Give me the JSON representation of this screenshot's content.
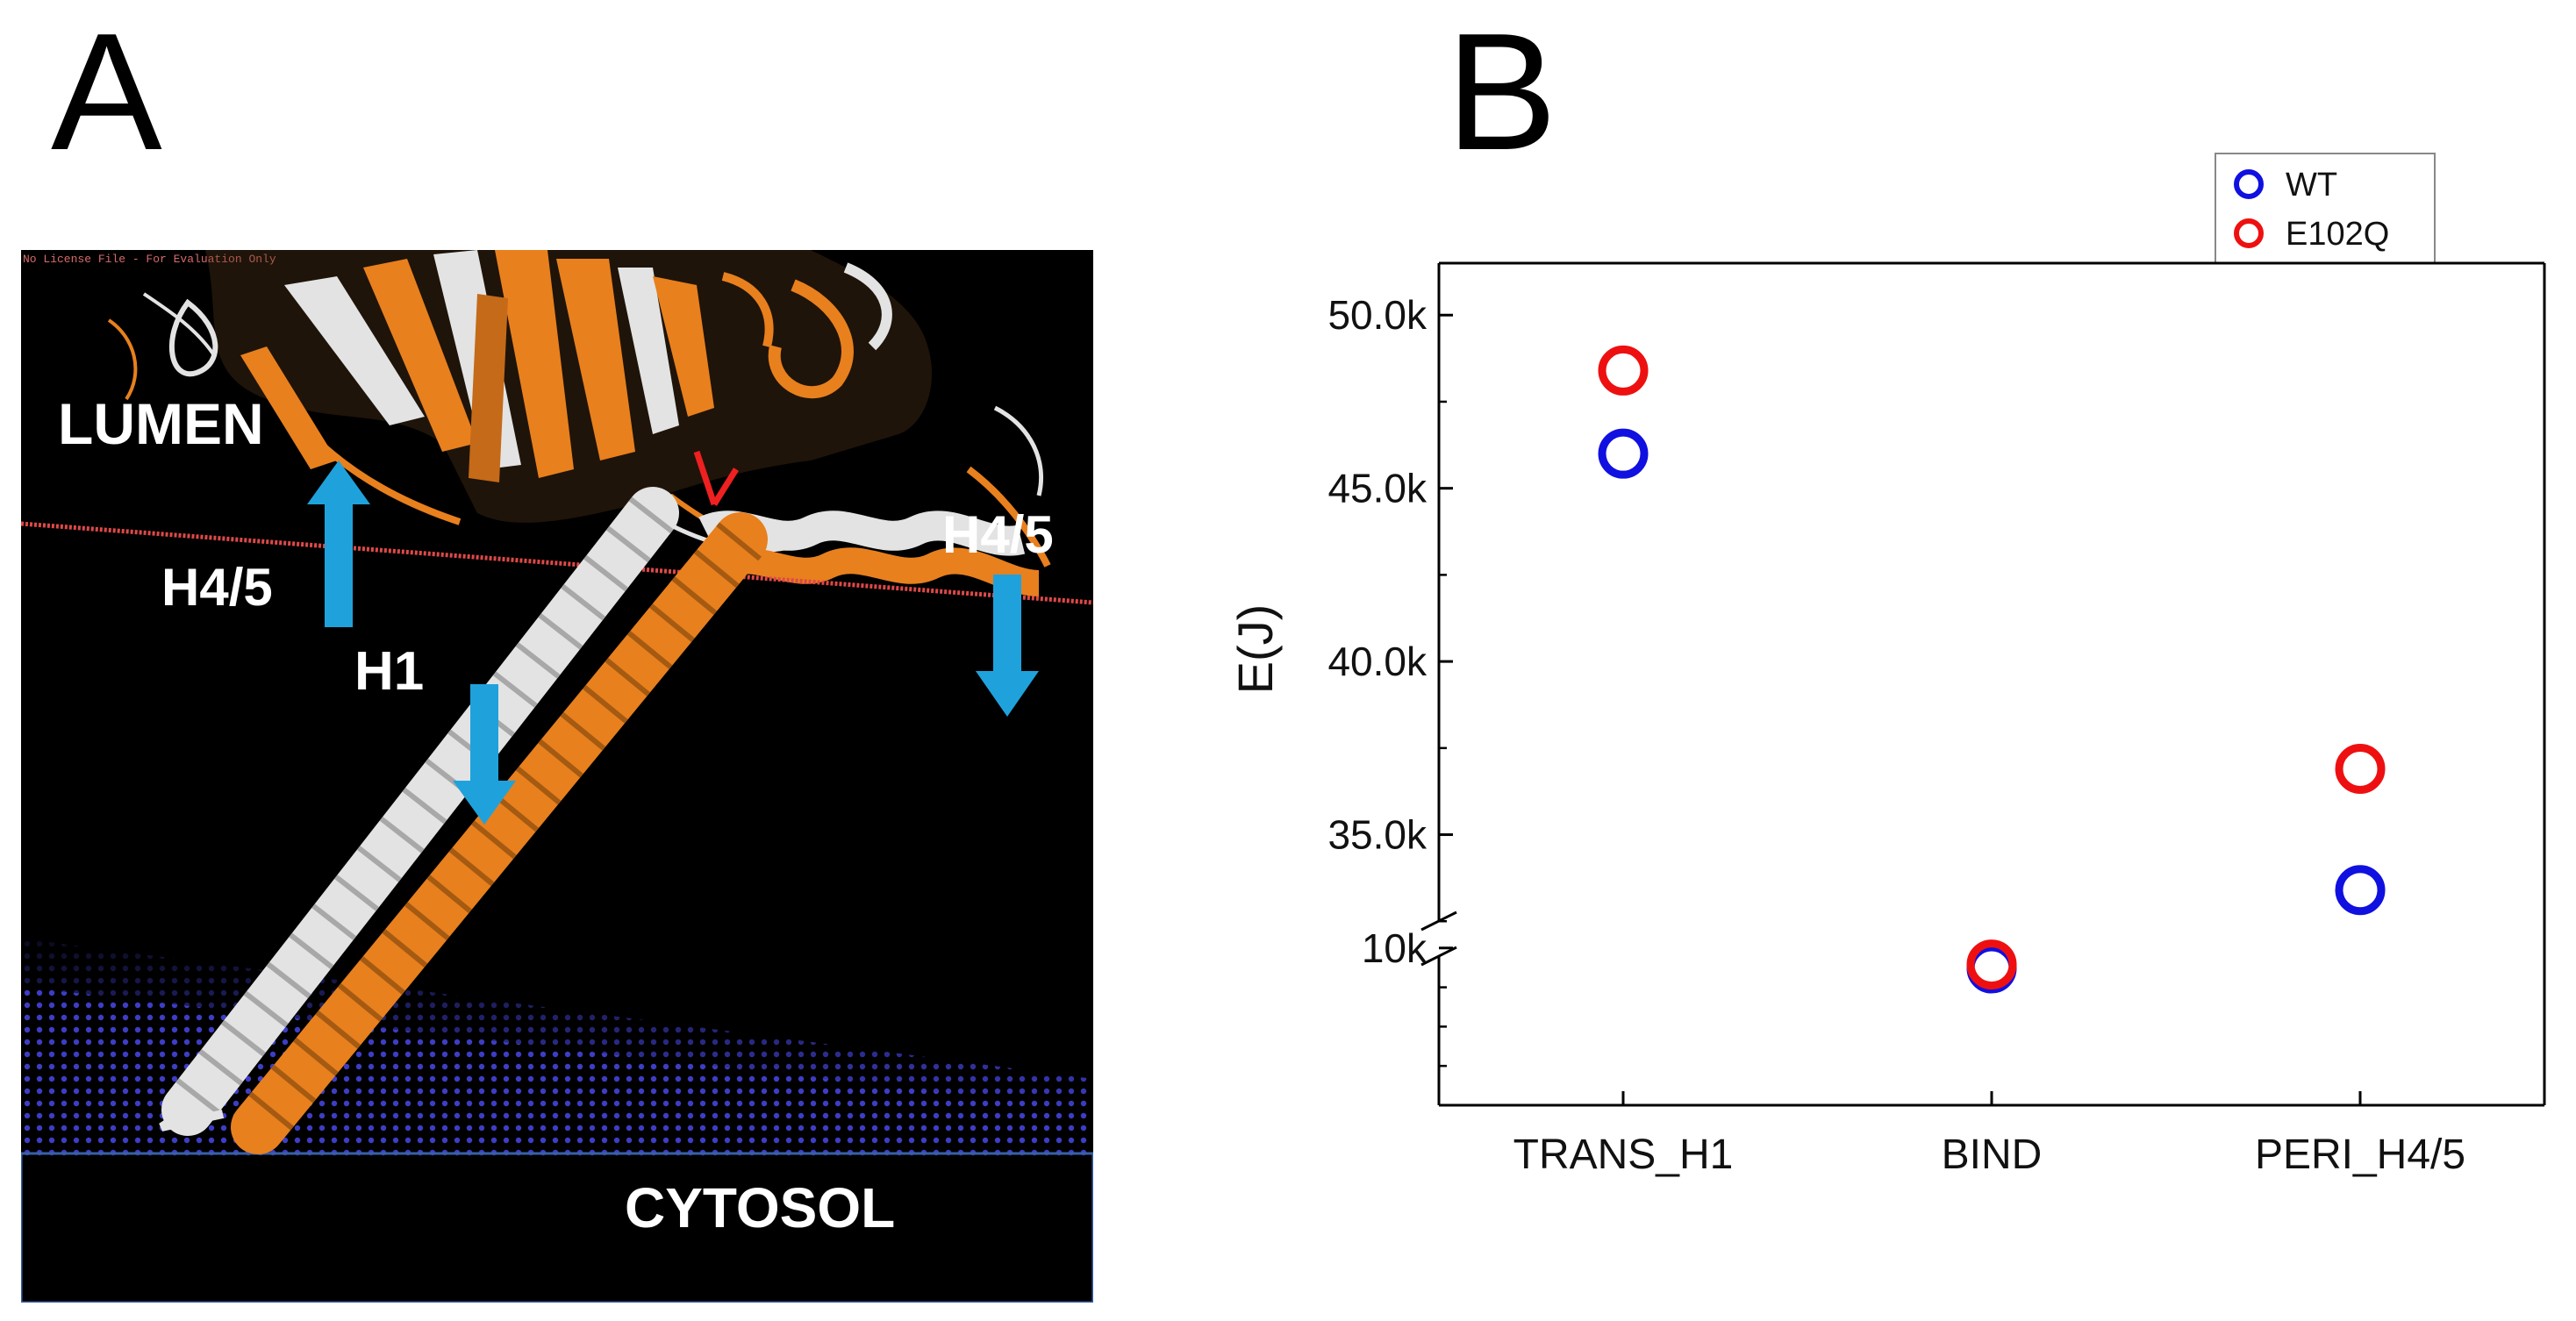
{
  "panels": {
    "a_letter": "A",
    "b_letter": "B"
  },
  "structure": {
    "watermark": "No License File - For Evaluation Only",
    "labels": {
      "lumen": "LUMEN",
      "cytosol": "CYTOSOL",
      "h45_left": "H4/5",
      "h45_right": "H4/5",
      "h1": "H1"
    },
    "colors": {
      "mutant_helix": "#E8801E",
      "wt_helix": "#E3E3E3",
      "membrane_line": "#E04848",
      "membrane_beads": "#4040D0",
      "arrow": "#1FA2DC",
      "background": "#000000"
    }
  },
  "chart_data": {
    "type": "scatter",
    "title": "",
    "xlabel": "",
    "ylabel": "E(J)",
    "categories": [
      "TRANS_H1",
      "BIND",
      "PERI_H4/5"
    ],
    "y_axis_break": true,
    "upper_segment": {
      "ylim": [
        32000,
        51500
      ],
      "ticks": [
        35000,
        40000,
        45000,
        50000
      ],
      "tick_labels": [
        "35.0k",
        "40.0k",
        "45.0k",
        "50.0k"
      ]
    },
    "lower_segment": {
      "ylim": [
        0,
        10600
      ],
      "ticks": [
        10000
      ],
      "tick_labels": [
        "10k"
      ]
    },
    "series": [
      {
        "name": "WT",
        "color": "#1010E0",
        "values": [
          46000,
          8700,
          33400
        ]
      },
      {
        "name": "E102Q",
        "color": "#EE1010",
        "values": [
          48400,
          8950,
          36900
        ]
      }
    ],
    "marker": "open-circle",
    "legend_position": "top-right",
    "grid": false
  }
}
